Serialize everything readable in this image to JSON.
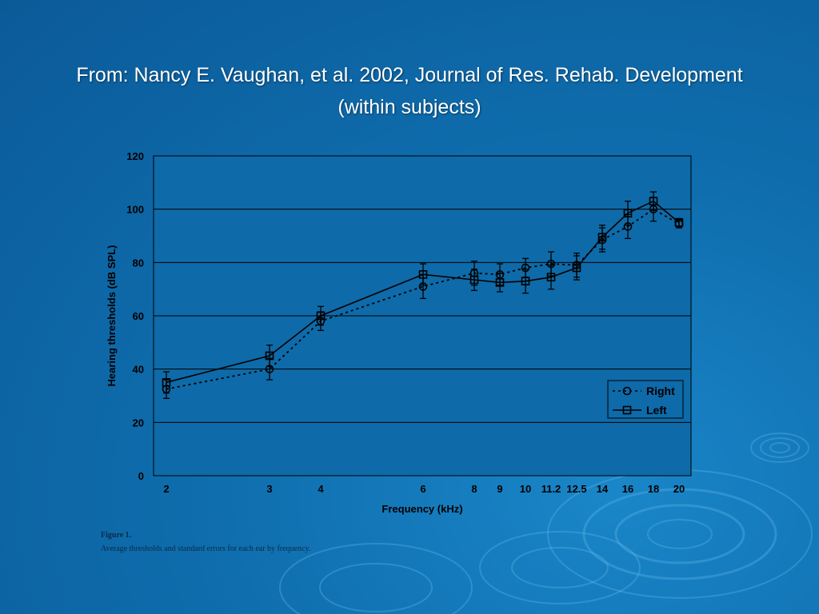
{
  "title_line1": "From: Nancy E. Vaughan, et al. 2002, Journal of Res. Rehab. Development",
  "title_line2": "(within subjects)",
  "caption_title": "Figure 1.",
  "caption_text": "Average thresholds and standard errors for each ear by frequency.",
  "colors": {
    "background": "#0f6eae",
    "plot_area": "#0e6aa8",
    "axis_text": "#000000",
    "series": "#000000"
  },
  "chart_data": {
    "type": "line",
    "xlabel": "Frequency (kHz)",
    "ylabel": "Hearing thresholds (dB SPL)",
    "ylim": [
      0,
      120
    ],
    "yticks": [
      0,
      20,
      40,
      60,
      80,
      100,
      120
    ],
    "x": [
      "2",
      "3",
      "4",
      "6",
      "8",
      "9",
      "10",
      "11.2",
      "12.5",
      "14",
      "16",
      "18",
      "20"
    ],
    "grid": "horizontal",
    "legend_position": "lower-right",
    "series": [
      {
        "name": "Right",
        "marker": "circle",
        "line": "dotted",
        "values": [
          32.5,
          40,
          58,
          71,
          76,
          75.5,
          78,
          79.5,
          79,
          88.5,
          93.5,
          100,
          94.5
        ],
        "errors": [
          3.5,
          4,
          3.5,
          4.5,
          4.5,
          4,
          3.5,
          4.5,
          4.5,
          4.5,
          4.5,
          4.5,
          1.5
        ]
      },
      {
        "name": "Left",
        "marker": "square",
        "line": "solid",
        "values": [
          35,
          45,
          60,
          75.5,
          73.5,
          72.5,
          73,
          74.5,
          78,
          89.5,
          98.5,
          103,
          95
        ],
        "errors": [
          4,
          4,
          3.5,
          4,
          4,
          3.5,
          4.5,
          4.5,
          4.5,
          4.5,
          4.5,
          3.5,
          1.5
        ]
      }
    ]
  }
}
